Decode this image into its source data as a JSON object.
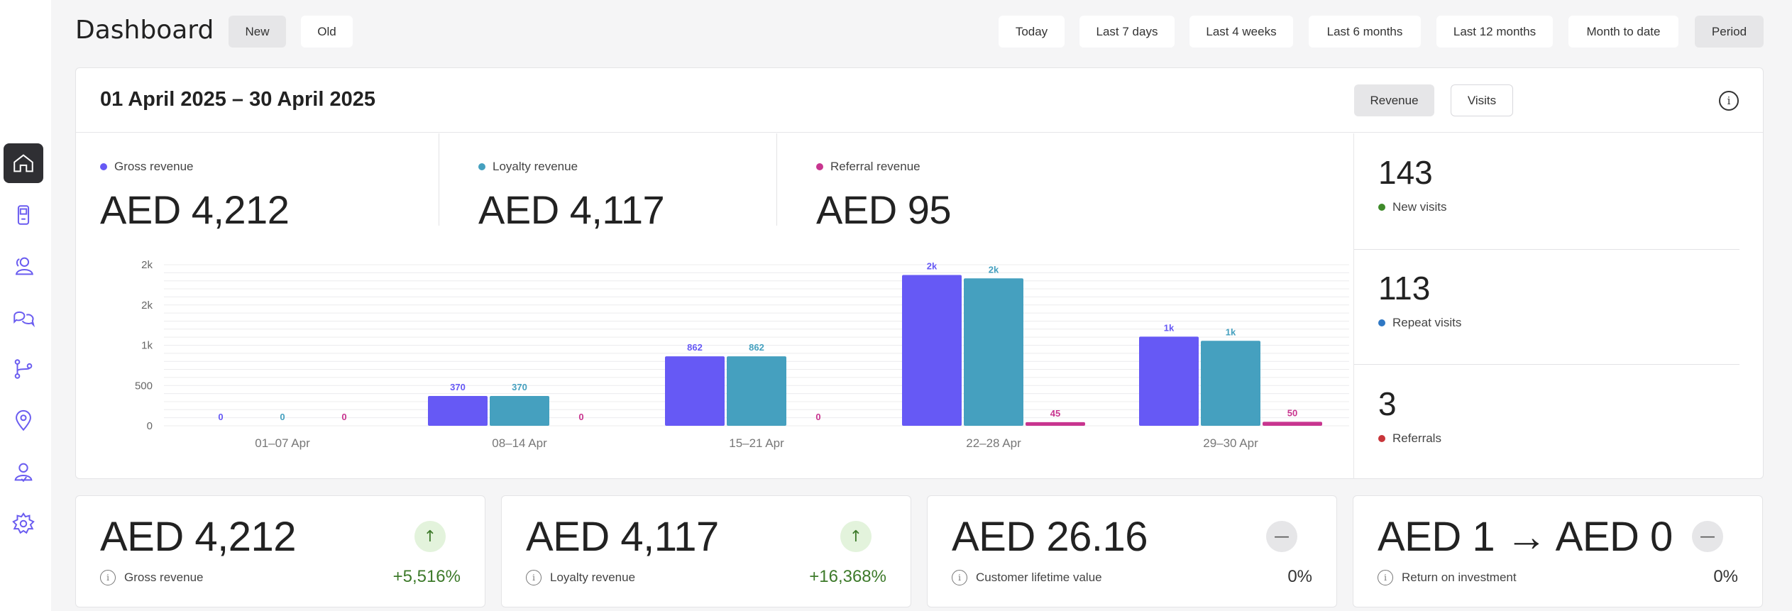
{
  "header": {
    "title": "Dashboard",
    "view_new": "New",
    "view_old": "Old",
    "ranges": [
      "Today",
      "Last 7 days",
      "Last 4 weeks",
      "Last 6 months",
      "Last 12 months",
      "Month to date",
      "Period"
    ],
    "selected_range": "Period"
  },
  "sidebar": {
    "items": [
      "home-icon",
      "device-icon",
      "users-icon",
      "chat-icon",
      "flow-icon",
      "location-icon",
      "profile-icon",
      "settings-icon"
    ],
    "active": "home-icon"
  },
  "overview": {
    "date_range": "01 April 2025 – 30 April 2025",
    "toggle_revenue": "Revenue",
    "toggle_visits": "Visits",
    "info_icon": "i",
    "stats": [
      {
        "label": "Gross revenue",
        "value": "AED 4,212",
        "color": "#6659f5"
      },
      {
        "label": "Loyalty revenue",
        "value": "AED 4,117",
        "color": "#45a0bf"
      },
      {
        "label": "Referral revenue",
        "value": "AED 95",
        "color": "#c8358f"
      }
    ],
    "visits": [
      {
        "value": "143",
        "label": "New visits",
        "color": "#3e8a2a"
      },
      {
        "value": "113",
        "label": "Repeat visits",
        "color": "#2f78c4"
      },
      {
        "value": "3",
        "label": "Referrals",
        "color": "#c8353a"
      }
    ]
  },
  "chart_data": {
    "type": "bar",
    "categories": [
      "01–07 Apr",
      "08–14 Apr",
      "15–21 Apr",
      "22–28 Apr",
      "29–30 Apr"
    ],
    "series": [
      {
        "name": "Gross revenue",
        "color": "#6659f5",
        "values": [
          0,
          370,
          862,
          1872,
          1107
        ],
        "labels": [
          "0",
          "370",
          "862",
          "2k",
          "1k"
        ]
      },
      {
        "name": "Loyalty revenue",
        "color": "#45a0bf",
        "values": [
          0,
          370,
          862,
          1830,
          1055
        ],
        "labels": [
          "0",
          "370",
          "862",
          "2k",
          "1k"
        ]
      },
      {
        "name": "Referral revenue",
        "color": "#c8358f",
        "values": [
          0,
          0,
          0,
          45,
          50
        ],
        "labels": [
          "0",
          "0",
          "0",
          "45",
          "50"
        ]
      }
    ],
    "yticks": [
      0,
      500,
      1000,
      1500,
      2000
    ],
    "ytick_labels": [
      "0",
      "500",
      "1k",
      "2k",
      "2k"
    ],
    "ylim": [
      0,
      2000
    ],
    "grid": true
  },
  "kpis": [
    {
      "value": "AED 4,212",
      "label": "Gross revenue",
      "change": "+5,516%",
      "trend": "up",
      "trend_icon": "↑"
    },
    {
      "value": "AED 4,117",
      "label": "Loyalty revenue",
      "change": "+16,368%",
      "trend": "up",
      "trend_icon": "↑"
    },
    {
      "value": "AED 26.16",
      "label": "Customer lifetime value",
      "change": "0%",
      "trend": "flat",
      "trend_icon": "—"
    },
    {
      "value": "AED 1 → AED 0",
      "label": "Return on investment",
      "change": "0%",
      "trend": "flat",
      "trend_icon": "—"
    }
  ]
}
